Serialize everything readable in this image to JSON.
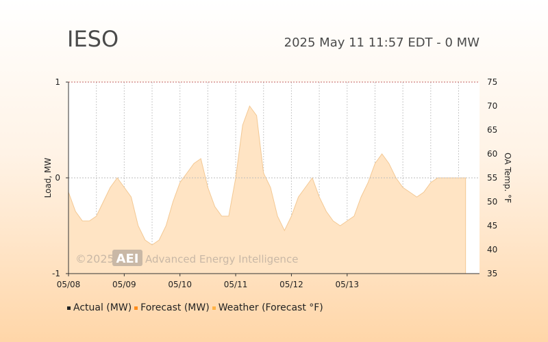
{
  "header": {
    "title": "IESO",
    "status": "2025 May 11 11:57 EDT - 0 MW"
  },
  "watermark": {
    "copyright": "©2025",
    "logo": "AEI",
    "company": "Advanced Energy Intelligence"
  },
  "chart_data": {
    "type": "area",
    "ylabel": "Load, MW",
    "y2label": "OA Temp. °F",
    "ylim": [
      -1,
      1
    ],
    "y2lim": [
      35,
      75
    ],
    "y_ticks": [
      -1,
      0,
      1
    ],
    "y2_ticks": [
      35,
      40,
      45,
      50,
      55,
      60,
      65,
      70,
      75
    ],
    "x_tick_labels": [
      "05/08",
      "05/09",
      "05/10",
      "05/11",
      "05/12",
      "05/13"
    ],
    "grid": "vertical dotted, horizontal at 0 and top",
    "legend": [
      {
        "name": "Actual (MW)",
        "color": "#222222"
      },
      {
        "name": "Forecast (MW)",
        "color": "#ff8c1a"
      },
      {
        "name": "Weather (Forecast °F)",
        "color": "#ffb347"
      }
    ],
    "series": [
      {
        "name": "Weather (Forecast °F)",
        "color": "#ffb347",
        "x_hours": [
          0,
          3,
          6,
          9,
          12,
          15,
          18,
          21,
          24,
          27,
          30,
          33,
          36,
          39,
          42,
          45,
          48,
          51,
          54,
          57,
          60,
          63,
          66,
          69,
          72,
          75,
          78,
          81,
          84,
          87,
          90,
          93,
          96,
          99,
          102,
          105,
          108,
          111,
          114,
          117,
          120,
          123,
          126,
          129,
          132,
          135,
          138,
          141,
          144,
          147,
          150,
          153,
          156,
          159,
          162,
          165,
          168,
          171
        ],
        "values": [
          52,
          48,
          46,
          46,
          47,
          50,
          53,
          55,
          53,
          51,
          45,
          42,
          41,
          42,
          45,
          50,
          54,
          56,
          58,
          59,
          53,
          49,
          47,
          47,
          55,
          66,
          70,
          68,
          56,
          53,
          47,
          44,
          47,
          51,
          53,
          55,
          51,
          48,
          46,
          45,
          46,
          47,
          51,
          54,
          58,
          60,
          58,
          55,
          53,
          52,
          51,
          52,
          54,
          55,
          55,
          55,
          55,
          55
        ]
      }
    ],
    "x_start_label": "05/08"
  }
}
